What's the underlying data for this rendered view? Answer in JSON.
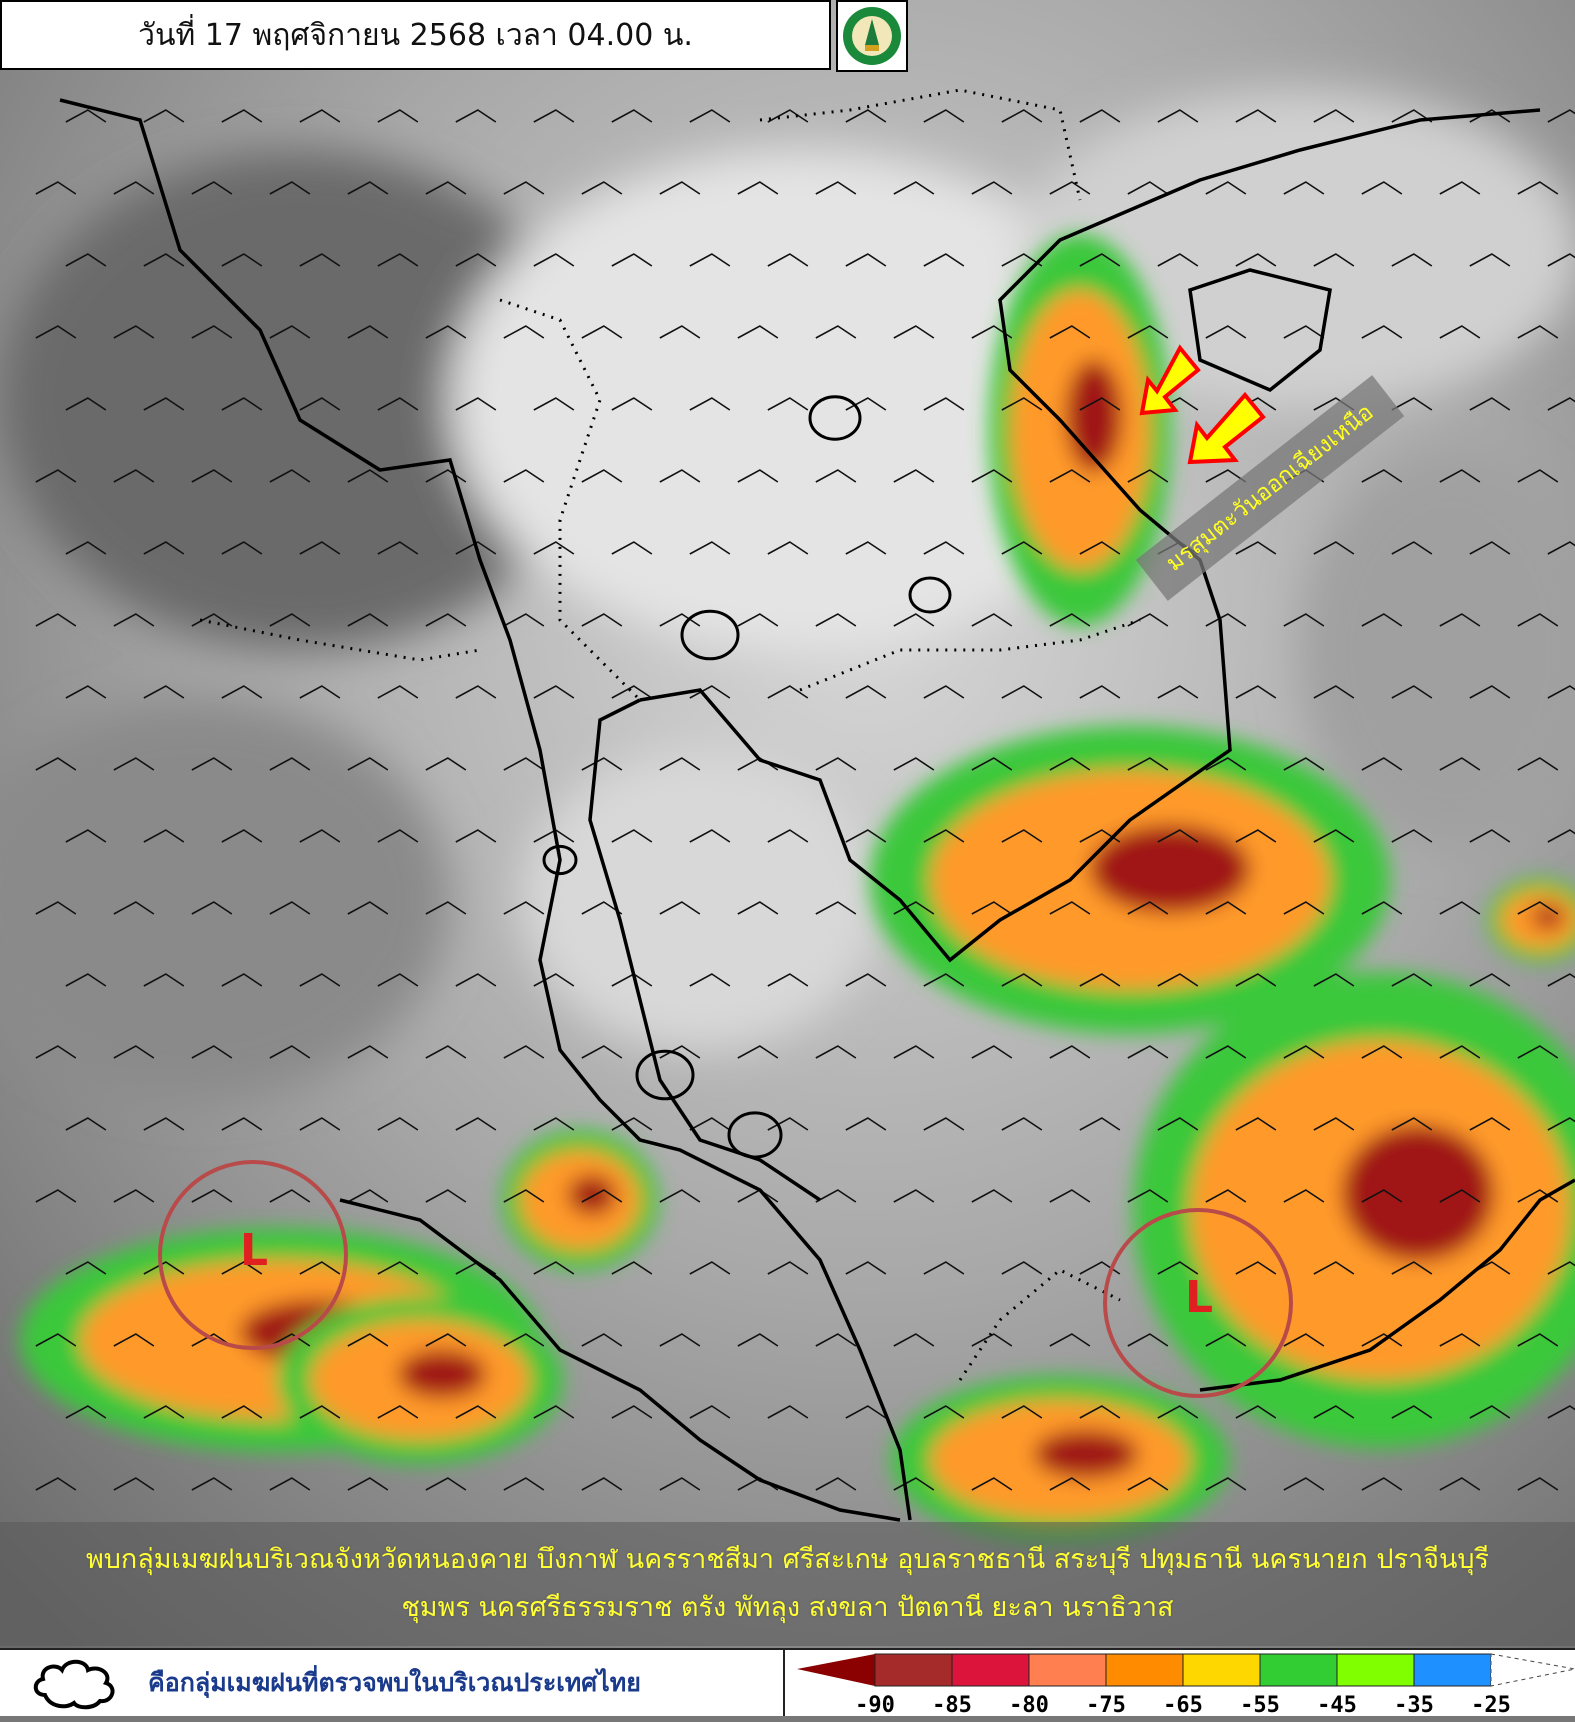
{
  "header": {
    "title": "วันที่ 17 พฤศจิกายน 2568 เวลา 04.00 น.",
    "logo_icon": "tmd-logo"
  },
  "map": {
    "type": "infrared-satellite-with-wind-barbs",
    "monsoon_label": "มรสุมตะวันออกเฉียงเหนือ",
    "arrow_color": "#ffff00",
    "arrow_outline": "#ff0000",
    "low_pressure": [
      {
        "label": "L"
      },
      {
        "label": "L"
      }
    ],
    "low_circle_color": "#b94a4a"
  },
  "summary": {
    "line1": "พบกลุ่มเมฆฝนบริเวณจังหวัดหนองคาย บึงกาฬ นครราชสีมา ศรีสะเกษ อุบลราชธานี สระบุรี ปทุมธานี นครนายก ปราจีนบุรี",
    "line2": "ชุมพร นครศรีธรรมราช ตรัง พัทลุง สงขลา ปัตตานี ยะลา นราธิวาส"
  },
  "legend": {
    "cloud_icon": "cloud-outline",
    "cloud_text": "คือกลุ่มเมฆฝนที่ตรวจพบในบริเวณประเทศไทย",
    "scale_labels": [
      "-90",
      "-85",
      "-80",
      "-75",
      "-65",
      "-55",
      "-45",
      "-35",
      "-25"
    ],
    "scale_colors": [
      "#8b0000",
      "#a52a2a",
      "#dc143c",
      "#ff7f50",
      "#ff8c00",
      "#ffd700",
      "#32cd32",
      "#7fff00",
      "#1e90ff",
      "#ffffff"
    ]
  }
}
